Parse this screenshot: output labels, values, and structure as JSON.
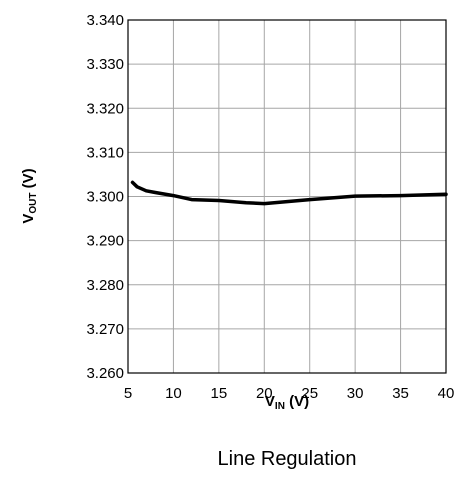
{
  "caption": "Line Regulation",
  "chart_data": {
    "type": "line",
    "xlabel_main": "V",
    "xlabel_sub": "IN",
    "xlabel_unit": " (V)",
    "ylabel_main": "V",
    "ylabel_sub": "OUT",
    "ylabel_unit": " (V)",
    "xlim": [
      5,
      40
    ],
    "ylim": [
      3.26,
      3.34
    ],
    "x_ticks": [
      5,
      10,
      15,
      20,
      25,
      30,
      35,
      40
    ],
    "x_tick_labels": [
      "5",
      "10",
      "15",
      "20",
      "25",
      "30",
      "35",
      "40"
    ],
    "y_ticks": [
      3.26,
      3.27,
      3.28,
      3.29,
      3.3,
      3.31,
      3.32,
      3.33,
      3.34
    ],
    "y_tick_labels": [
      "3.260",
      "3.270",
      "3.280",
      "3.290",
      "3.300",
      "3.310",
      "3.320",
      "3.330",
      "3.340"
    ],
    "grid": true,
    "series": [
      {
        "color": "#000000",
        "x": [
          5.5,
          6,
          7,
          8,
          10,
          12,
          15,
          18,
          20,
          25,
          30,
          35,
          40
        ],
        "y": [
          3.3032,
          3.3022,
          3.3013,
          3.3009,
          3.3002,
          3.2993,
          3.2991,
          3.2986,
          3.2984,
          3.2993,
          3.3001,
          3.3002,
          3.3005
        ]
      }
    ]
  }
}
